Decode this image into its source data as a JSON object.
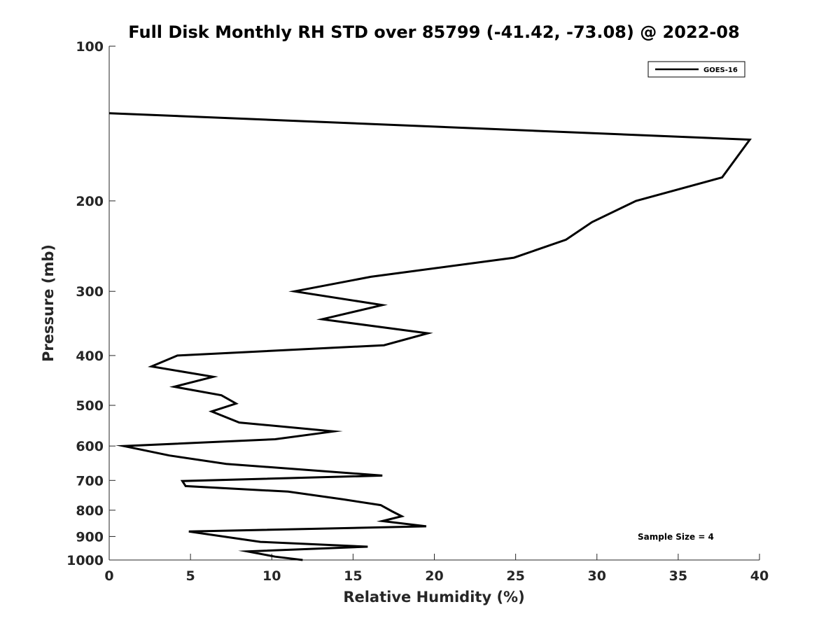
{
  "chart_data": {
    "type": "line",
    "title": "Full Disk Monthly RH STD over 85799 (-41.42, -73.08) @ 2022-08",
    "xlabel": "Relative Humidity (%)",
    "ylabel": "Pressure (mb)",
    "xlim": [
      0,
      40
    ],
    "ylim": [
      100,
      1000
    ],
    "y_scale": "log",
    "y_reversed": true,
    "grid": false,
    "legend_position": "top-right",
    "x_ticks": [
      0,
      5,
      10,
      15,
      20,
      25,
      30,
      35,
      40
    ],
    "y_ticks": [
      100,
      200,
      300,
      400,
      500,
      600,
      700,
      800,
      900,
      1000
    ],
    "series": [
      {
        "name": "GOES-16",
        "color": "#000000",
        "points": [
          [
            0.0,
            135
          ],
          [
            39.4,
            152
          ],
          [
            37.7,
            180
          ],
          [
            32.4,
            200
          ],
          [
            29.7,
            220
          ],
          [
            28.1,
            238
          ],
          [
            24.9,
            258
          ],
          [
            16.1,
            281
          ],
          [
            11.4,
            300
          ],
          [
            16.8,
            319
          ],
          [
            13.1,
            340
          ],
          [
            19.6,
            362
          ],
          [
            16.9,
            382
          ],
          [
            4.2,
            400
          ],
          [
            2.6,
            420
          ],
          [
            6.4,
            440
          ],
          [
            4.0,
            460
          ],
          [
            6.9,
            478
          ],
          [
            7.8,
            496
          ],
          [
            6.3,
            514
          ],
          [
            8.0,
            540
          ],
          [
            13.8,
            562
          ],
          [
            10.2,
            582
          ],
          [
            0.9,
            600
          ],
          [
            3.7,
            626
          ],
          [
            7.2,
            650
          ],
          [
            16.8,
            685
          ],
          [
            4.5,
            702
          ],
          [
            4.7,
            718
          ],
          [
            11.0,
            736
          ],
          [
            14.4,
            762
          ],
          [
            16.7,
            782
          ],
          [
            17.4,
            804
          ],
          [
            18.0,
            822
          ],
          [
            16.8,
            840
          ],
          [
            19.5,
            860
          ],
          [
            4.9,
            880
          ],
          [
            9.3,
            922
          ],
          [
            15.9,
            942
          ],
          [
            8.5,
            962
          ],
          [
            10.2,
            985
          ],
          [
            11.9,
            1000
          ]
        ]
      }
    ],
    "annotations": [
      "Sample Size = 4"
    ]
  }
}
